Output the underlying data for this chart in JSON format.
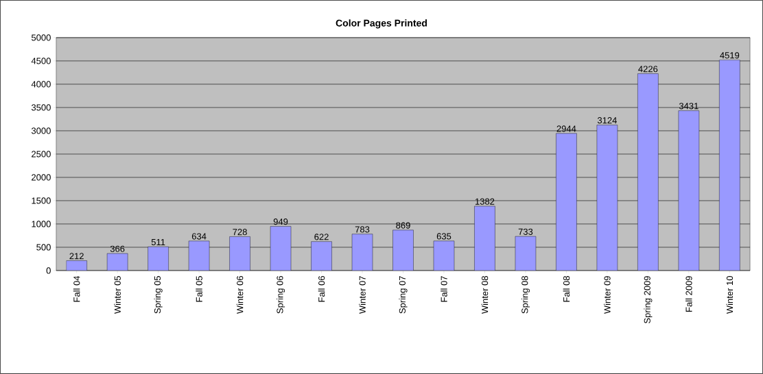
{
  "chart_data": {
    "type": "bar",
    "title": "Color Pages Printed",
    "categories": [
      "Fall 04",
      "Winter 05",
      "Spring 05",
      "Fall 05",
      "Winter 06",
      "Spring 06",
      "Fall 06",
      "Winter 07",
      "Spring 07",
      "Fall 07",
      "Winter 08",
      "Spring 08",
      "Fall 08",
      "Winter 09",
      "Spring 2009",
      "Fall 2009",
      "Winter 10"
    ],
    "values": [
      212,
      366,
      511,
      634,
      728,
      949,
      622,
      783,
      869,
      635,
      1382,
      733,
      2944,
      3124,
      4226,
      3431,
      4519
    ],
    "color": "#9999ff",
    "ylim": [
      0,
      5000
    ],
    "yticks": [
      0,
      500,
      1000,
      1500,
      2000,
      2500,
      3000,
      3500,
      4000,
      4500,
      5000
    ],
    "grid": "y",
    "data_labels": true
  }
}
